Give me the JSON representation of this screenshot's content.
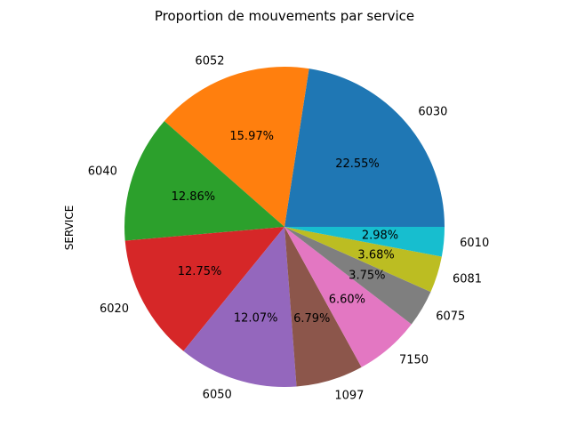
{
  "chart_data": {
    "type": "pie",
    "title": "Proportion de mouvements par service",
    "ylabel": "SERVICE",
    "start_angle_deg": 0,
    "direction": "counterclockwise",
    "slices": [
      {
        "label": "6030",
        "value": 22.55,
        "pct_label": "22.55%",
        "color": "#1f77b4"
      },
      {
        "label": "6052",
        "value": 15.97,
        "pct_label": "15.97%",
        "color": "#ff7f0e"
      },
      {
        "label": "6040",
        "value": 12.86,
        "pct_label": "12.86%",
        "color": "#2ca02c"
      },
      {
        "label": "6020",
        "value": 12.75,
        "pct_label": "12.75%",
        "color": "#d62728"
      },
      {
        "label": "6050",
        "value": 12.07,
        "pct_label": "12.07%",
        "color": "#9467bd"
      },
      {
        "label": "1097",
        "value": 6.79,
        "pct_label": "6.79%",
        "color": "#8c564b"
      },
      {
        "label": "7150",
        "value": 6.6,
        "pct_label": "6.60%",
        "color": "#e377c2"
      },
      {
        "label": "6075",
        "value": 3.75,
        "pct_label": "3.75%",
        "color": "#7f7f7f"
      },
      {
        "label": "6081",
        "value": 3.68,
        "pct_label": "3.68%",
        "color": "#bcbd22"
      },
      {
        "label": "6010",
        "value": 2.98,
        "pct_label": "2.98%",
        "color": "#17becf"
      }
    ]
  }
}
